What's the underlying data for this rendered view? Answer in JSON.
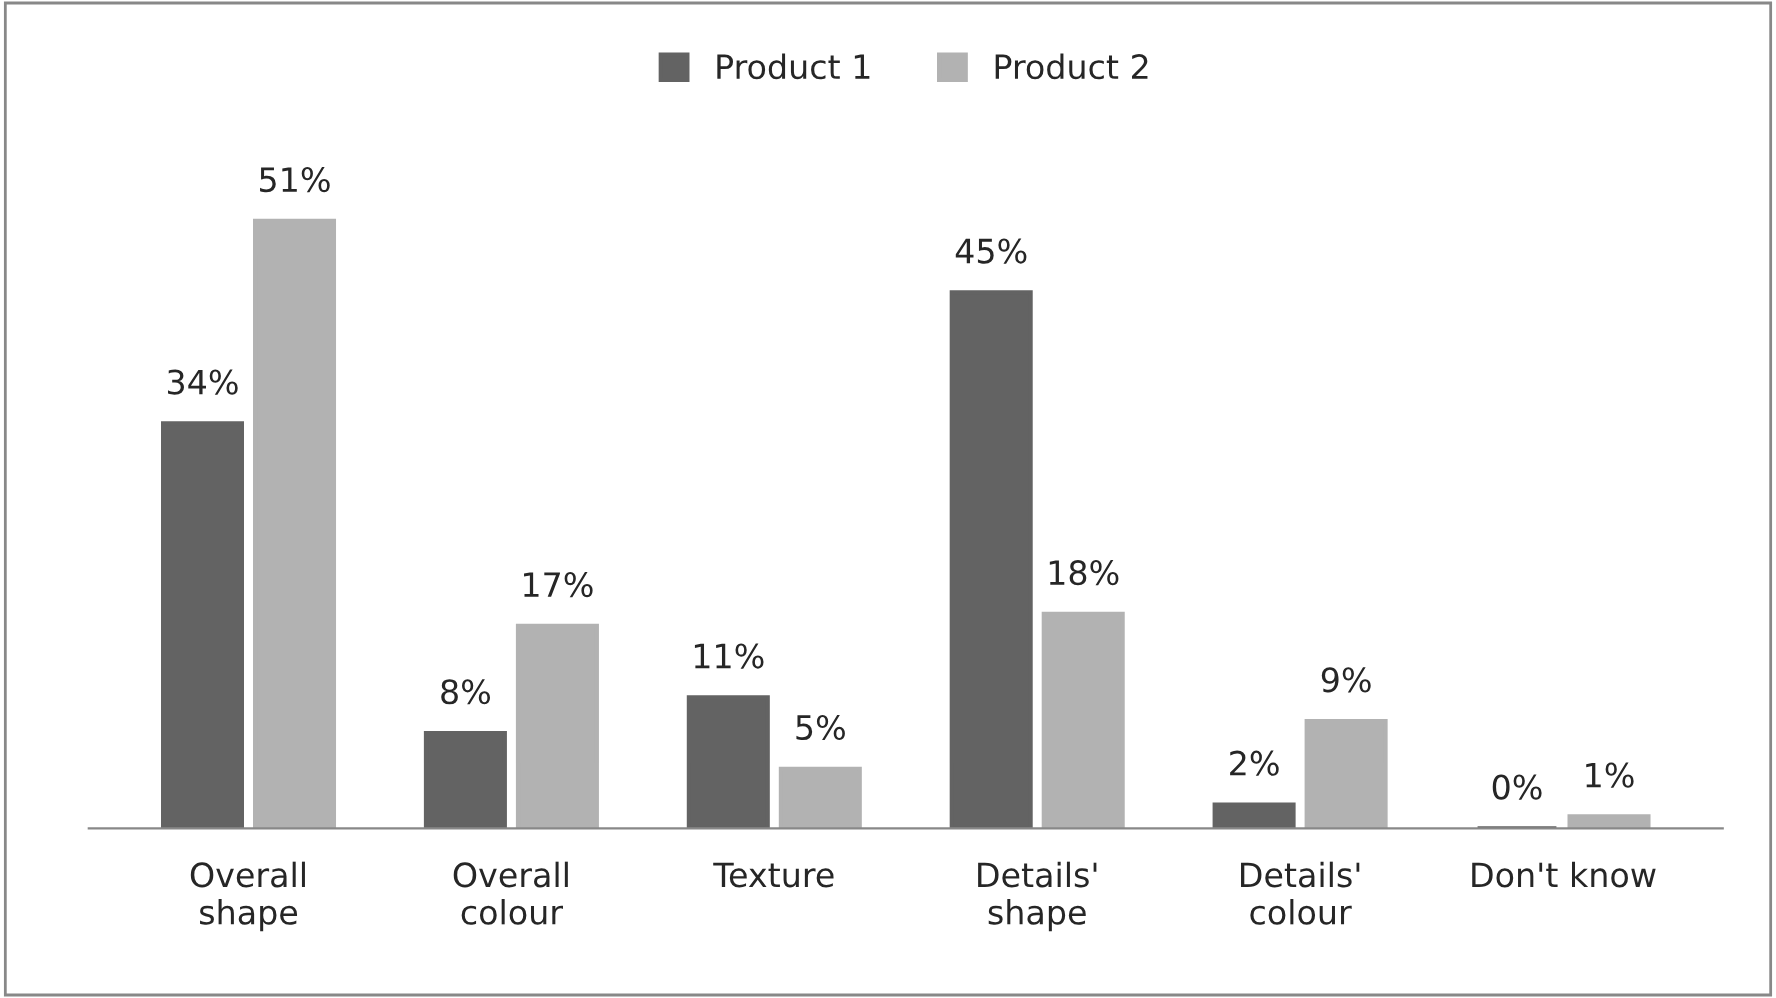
{
  "chart_data": {
    "type": "bar",
    "categories": [
      "Overall\nshape",
      "Overall\ncolour",
      "Texture",
      "Details'\nshape",
      "Details'\ncolour",
      "Don't know"
    ],
    "series": [
      {
        "name": "Product 1",
        "color": "#636363",
        "values": [
          34,
          8,
          11,
          45,
          2,
          0
        ],
        "value_labels": [
          "34%",
          "8%",
          "11%",
          "45%",
          "2%",
          "0%"
        ]
      },
      {
        "name": "Product 2",
        "color": "#b2b2b2",
        "values": [
          51,
          17,
          5,
          18,
          9,
          1
        ],
        "value_labels": [
          "51%",
          "17%",
          "5%",
          "18%",
          "9%",
          "1%"
        ]
      }
    ],
    "legend": "top",
    "grid": false
  }
}
